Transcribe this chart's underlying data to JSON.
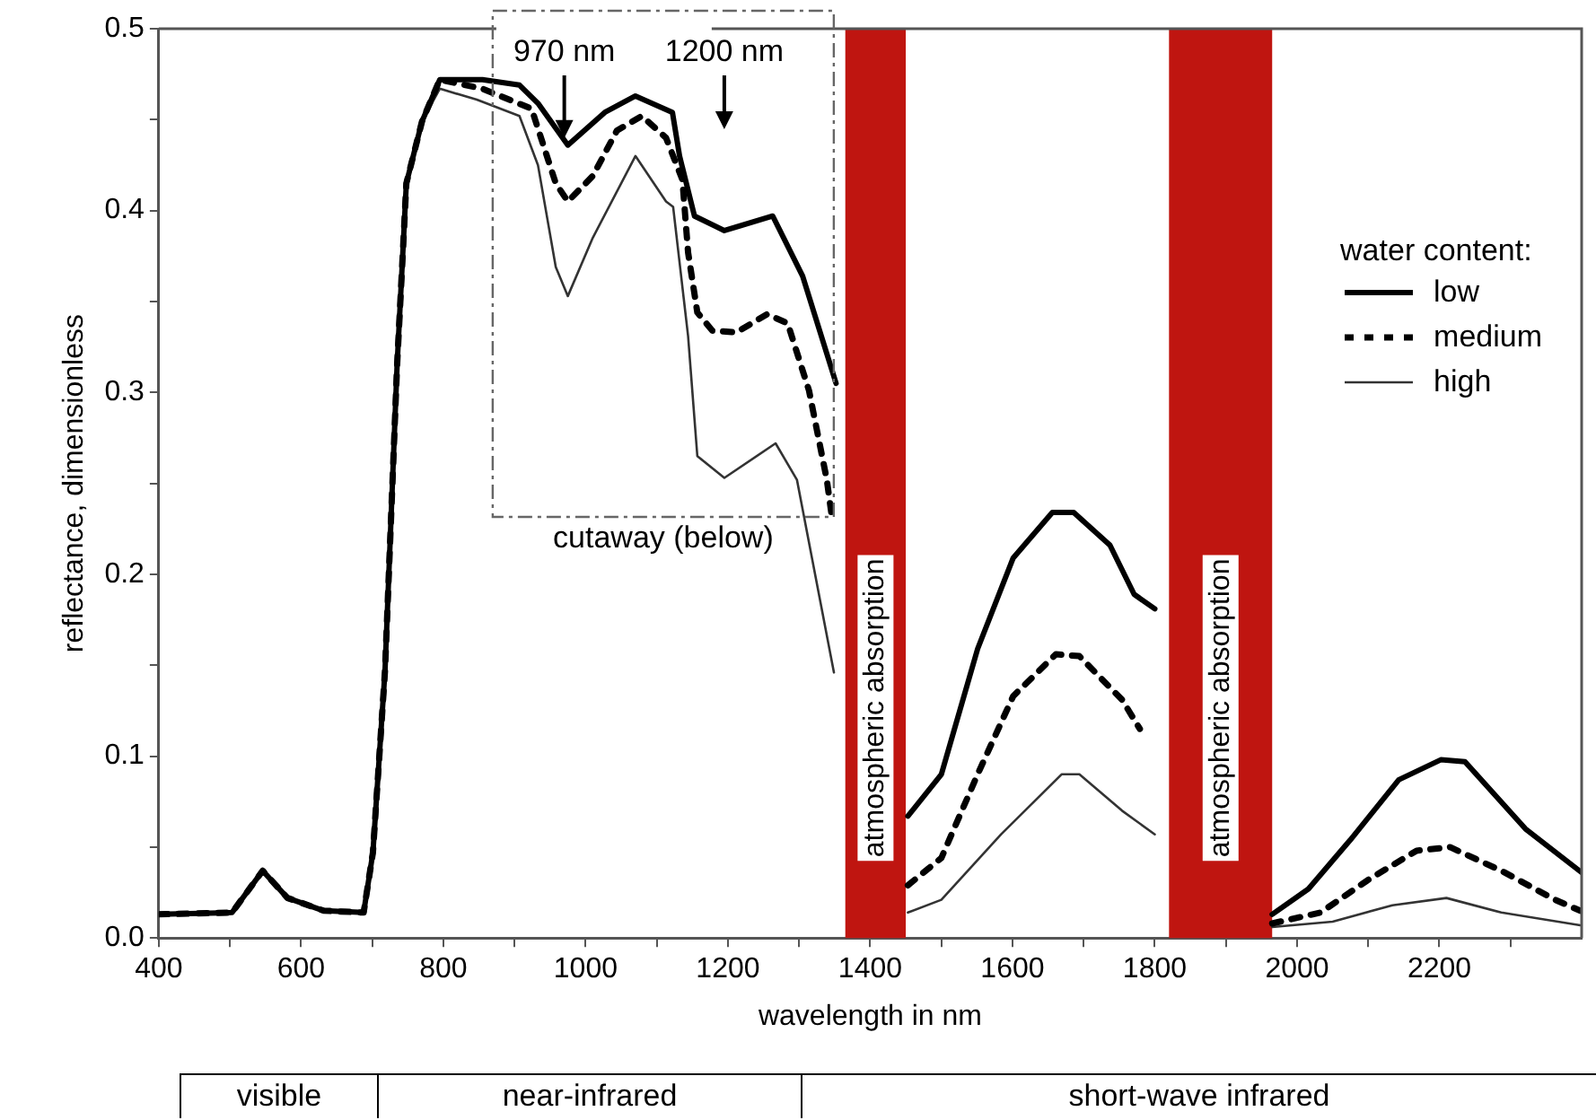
{
  "chart_data": {
    "type": "line",
    "xlabel": "wavelength in nm",
    "ylabel": "reflectance, dimensionless",
    "legend_title": "water content:",
    "xlim": [
      400,
      2400
    ],
    "ylim": [
      0,
      0.5
    ],
    "xticks": [
      400,
      {
        "value": 500,
        "label": null
      },
      600,
      {
        "value": 700,
        "label": null
      },
      800,
      {
        "value": 900,
        "label": null
      },
      1000,
      {
        "value": 1100,
        "label": null
      },
      1200,
      {
        "value": 1300,
        "label": null
      },
      1400,
      {
        "value": 1500,
        "label": null
      },
      1600,
      {
        "value": 1700,
        "label": null
      },
      1800,
      {
        "value": 1900,
        "label": null
      },
      2000,
      {
        "value": 2100,
        "label": null
      },
      2200,
      {
        "value": 2300,
        "label": null
      }
    ],
    "yticks": [
      {
        "value": 0,
        "label": "0.0"
      },
      {
        "value": 0.05,
        "label": null
      },
      0.1,
      {
        "value": 0.15,
        "label": null
      },
      0.2,
      {
        "value": 0.25,
        "label": null
      },
      0.3,
      {
        "value": 0.35,
        "label": null
      },
      0.4,
      {
        "value": 0.45,
        "label": null
      },
      0.5
    ],
    "legend": "top right",
    "marker": "none",
    "series": [
      {
        "name": "low",
        "color": "#000000",
        "line_style": "solid",
        "x": [
          400,
          503,
          546,
          581,
          632,
          688,
          701,
          718,
          735,
          748,
          770,
          795,
          855,
          907,
          933,
          975,
          1027,
          1070,
          1122,
          1132,
          1153,
          1195,
          1263,
          1305,
          1352,
          1400,
          1453,
          1500,
          1551,
          1601,
          1656,
          1686,
          1737,
          1771,
          1800,
          1900,
          1965,
          2016,
          2075,
          2143,
          2202,
          2236,
          2321,
          2400
        ],
        "values": [
          0.013,
          0.014,
          0.037,
          0.022,
          0.015,
          0.014,
          0.047,
          0.147,
          0.315,
          0.415,
          0.449,
          0.472,
          0.472,
          0.469,
          0.459,
          0.436,
          0.454,
          0.463,
          0.454,
          0.43,
          0.397,
          0.389,
          0.397,
          0.364,
          0.305,
          null,
          0.067,
          0.09,
          0.159,
          0.209,
          0.234,
          0.234,
          0.216,
          0.189,
          0.181,
          null,
          0.013,
          0.027,
          0.054,
          0.087,
          0.098,
          0.097,
          0.06,
          0.036
        ]
      },
      {
        "name": "medium",
        "color": "#000000",
        "line_style": "dashed",
        "x": [
          400,
          503,
          546,
          581,
          632,
          688,
          701,
          718,
          735,
          748,
          770,
          795,
          855,
          924,
          958,
          975,
          1010,
          1044,
          1079,
          1113,
          1136,
          1144,
          1157,
          1178,
          1212,
          1255,
          1284,
          1314,
          1339,
          1347,
          1400,
          1453,
          1500,
          1551,
          1601,
          1661,
          1694,
          1754,
          1779,
          1900,
          1965,
          2033,
          2100,
          2168,
          2215,
          2287,
          2363,
          2398
        ],
        "values": [
          0.013,
          0.014,
          0.037,
          0.022,
          0.015,
          0.014,
          0.047,
          0.147,
          0.315,
          0.415,
          0.449,
          0.472,
          0.467,
          0.456,
          0.415,
          0.405,
          0.419,
          0.444,
          0.452,
          0.44,
          0.417,
          0.377,
          0.344,
          0.334,
          0.333,
          0.343,
          0.338,
          0.301,
          0.252,
          0.229,
          null,
          0.029,
          0.044,
          0.09,
          0.133,
          0.156,
          0.155,
          0.131,
          0.115,
          null,
          0.008,
          0.014,
          0.032,
          0.048,
          0.05,
          0.037,
          0.021,
          0.015
        ]
      },
      {
        "name": "high",
        "color": "#333333",
        "line_style": "solid",
        "x": [
          400,
          503,
          546,
          581,
          632,
          688,
          701,
          718,
          735,
          748,
          770,
          795,
          847,
          907,
          933,
          958,
          975,
          1010,
          1070,
          1113,
          1123,
          1144,
          1157,
          1195,
          1267,
          1297,
          1349,
          1400,
          1453,
          1500,
          1584,
          1669,
          1694,
          1754,
          1800,
          1900,
          1965,
          2050,
          2134,
          2210,
          2287,
          2398
        ],
        "values": [
          0.013,
          0.014,
          0.037,
          0.022,
          0.015,
          0.014,
          0.047,
          0.147,
          0.315,
          0.415,
          0.449,
          0.467,
          0.461,
          0.452,
          0.425,
          0.369,
          0.353,
          0.385,
          0.43,
          0.405,
          0.402,
          0.331,
          0.265,
          0.253,
          0.272,
          0.252,
          0.146,
          null,
          0.014,
          0.021,
          0.057,
          0.09,
          0.09,
          0.07,
          0.057,
          null,
          0.006,
          0.009,
          0.018,
          0.022,
          0.014,
          0.007
        ]
      }
    ],
    "bands": [
      {
        "axis": "x",
        "from": 1365,
        "to": 1450,
        "label": "atmospheric absorption",
        "color": "#bf1510"
      },
      {
        "axis": "x",
        "from": 1820,
        "to": 1965,
        "label": "atmospheric absorption",
        "color": "#bf1510"
      }
    ],
    "annotations": [
      {
        "text": "970 nm",
        "x": 970,
        "y": 0.436
      },
      "1200 nm",
      "cutaway (below)",
      "visible",
      "near-infrared",
      "short-wave infrared"
    ]
  }
}
